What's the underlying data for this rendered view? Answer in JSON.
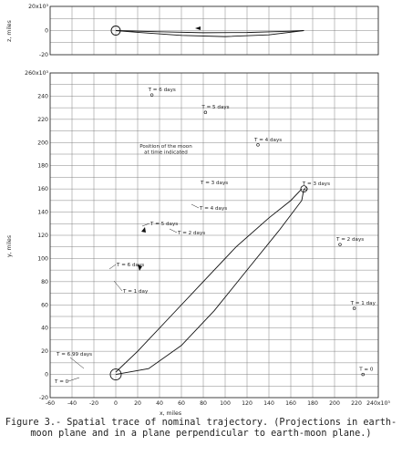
{
  "caption": {
    "line1": "Figure 3.- Spatial trace of nominal trajectory.  (Projections in earth-",
    "line2": "moon plane and in a plane perpendicular to earth-moon plane.)"
  },
  "chart_data": [
    {
      "type": "line",
      "panel": "top",
      "ylabel": "z, miles",
      "xlim": [
        -60,
        240
      ],
      "ylim": [
        -20,
        20
      ],
      "y_ticks": [
        "20x10³",
        "0",
        "-20"
      ],
      "series": [
        {
          "x": [
            0,
            20,
            60,
            100,
            140,
            172
          ],
          "y": [
            0,
            -1.5,
            -4,
            -5,
            -3.5,
            0
          ]
        },
        {
          "x": [
            0,
            40,
            80,
            120,
            160,
            172
          ],
          "y": [
            0,
            -1,
            -1.8,
            -1.6,
            -0.5,
            0
          ]
        }
      ]
    },
    {
      "type": "line",
      "panel": "bottom",
      "xlabel": "x, miles",
      "ylabel": "y, miles",
      "xlim": [
        -60,
        240
      ],
      "ylim": [
        -20,
        260
      ],
      "x_ticks": [
        "-60",
        "-40",
        "-20",
        "0",
        "20",
        "40",
        "60",
        "80",
        "100",
        "120",
        "140",
        "160",
        "180",
        "200",
        "220",
        "240x10³"
      ],
      "y_ticks": [
        "-20",
        "0",
        "20",
        "40",
        "60",
        "80",
        "100",
        "120",
        "140",
        "160",
        "180",
        "200",
        "220",
        "240",
        "260x10³"
      ],
      "series": [
        {
          "x": [
            0,
            20,
            50,
            80,
            110,
            140,
            160,
            170
          ],
          "y": [
            2,
            20,
            50,
            80,
            110,
            135,
            150,
            160
          ]
        },
        {
          "x": [
            0,
            30,
            60,
            90,
            120,
            150,
            170,
            172
          ],
          "y": [
            0,
            5,
            25,
            55,
            90,
            125,
            150,
            160
          ]
        }
      ],
      "moon_positions": [
        {
          "label": "T = 0",
          "x": 226,
          "y": 0
        },
        {
          "label": "T = 1 day",
          "x": 218,
          "y": 57
        },
        {
          "label": "T = 2 days",
          "x": 205,
          "y": 112
        },
        {
          "label": "T = 3 days",
          "x": 174,
          "y": 160
        },
        {
          "label": "T = 4 days",
          "x": 130,
          "y": 198
        },
        {
          "label": "T = 5 days",
          "x": 82,
          "y": 226
        },
        {
          "label": "T = 6 days",
          "x": 33,
          "y": 241
        }
      ],
      "annotations": [
        "T = 6.99 days",
        "T = 0",
        "T = 1 day",
        "T = 2 days",
        "T = 3 days",
        "T = 4 days",
        "T = 5 days",
        "T = 6 days",
        "Position of the moon",
        "at time indicated"
      ]
    }
  ]
}
